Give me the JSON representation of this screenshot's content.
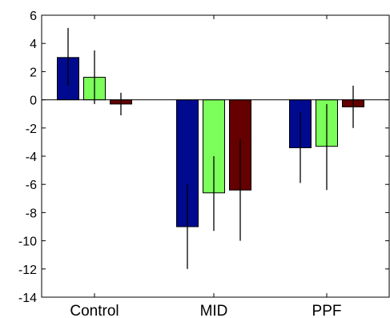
{
  "chart_data": {
    "type": "bar",
    "title": "",
    "xlabel": "",
    "ylabel": "",
    "categories": [
      "Control",
      "MID",
      "PPF"
    ],
    "ylim": [
      -14,
      6
    ],
    "yticks": [
      6,
      4,
      2,
      0,
      -2,
      -4,
      -6,
      -8,
      -10,
      -12,
      -14
    ],
    "yticklabels": [
      "6",
      "4",
      "2",
      "0",
      "-2",
      "-4",
      "-6",
      "-8",
      "-10",
      "-12",
      "-14"
    ],
    "grid": false,
    "legend": "none",
    "series": [
      {
        "color": "#000a8f",
        "values": [
          3.0,
          -9.0,
          -3.4
        ],
        "err_low": [
          1.0,
          -12.0,
          -5.9
        ],
        "err_high": [
          5.1,
          -6.0,
          -0.9
        ]
      },
      {
        "color": "#7cff5a",
        "values": [
          1.6,
          -6.6,
          -3.3
        ],
        "err_low": [
          -0.3,
          -9.3,
          -6.4
        ],
        "err_high": [
          3.5,
          -4.0,
          -0.3
        ]
      },
      {
        "color": "#650000",
        "values": [
          -0.3,
          -6.4,
          -0.5
        ],
        "err_low": [
          -1.1,
          -10.0,
          -2.0
        ],
        "err_high": [
          0.5,
          -2.8,
          1.0
        ]
      }
    ]
  }
}
